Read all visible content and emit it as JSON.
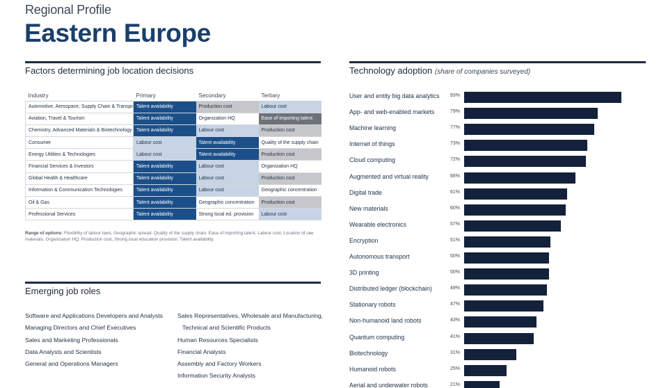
{
  "header": {
    "eyebrow": "Regional Profile",
    "title": "Eastern Europe"
  },
  "factors": {
    "title": "Factors determining job location decisions",
    "columns": [
      "Industry",
      "Primary",
      "Secondary",
      "Tertiary"
    ],
    "rows": [
      {
        "industry": "Automotive, Aerospace, Supply Chain & Transport",
        "primary": "Talent availability",
        "secondary": "Production cost",
        "tertiary": "Labour cost",
        "styles": [
          "dark",
          "grey",
          "light"
        ]
      },
      {
        "industry": "Aviation, Travel & Tourism",
        "primary": "Talent availability",
        "secondary": "Organization HQ",
        "tertiary": "Ease of importing talent",
        "styles": [
          "dark",
          "white",
          "darkgrey"
        ]
      },
      {
        "industry": "Chemistry, Advanced Materials & Biotechnology",
        "primary": "Talent availability",
        "secondary": "Labour cost",
        "tertiary": "Production cost",
        "styles": [
          "dark",
          "light",
          "grey"
        ]
      },
      {
        "industry": "Consumer",
        "primary": "Labour cost",
        "secondary": "Talent availability",
        "tertiary": "Quality of the supply chain",
        "styles": [
          "light",
          "dark",
          "white"
        ]
      },
      {
        "industry": "Energy Utilities & Technologies",
        "primary": "Labour cost",
        "secondary": "Talent availability",
        "tertiary": "Production cost",
        "styles": [
          "light",
          "dark",
          "grey"
        ]
      },
      {
        "industry": "Financial Services & Investors",
        "primary": "Talent availability",
        "secondary": "Labour cost",
        "tertiary": "Organization HQ",
        "styles": [
          "dark",
          "light",
          "white"
        ]
      },
      {
        "industry": "Global Health & Healthcare",
        "primary": "Talent availability",
        "secondary": "Labour cost",
        "tertiary": "Production cost",
        "styles": [
          "dark",
          "light",
          "grey"
        ]
      },
      {
        "industry": "Information & Communication Technologies",
        "primary": "Talent availability",
        "secondary": "Labour cost",
        "tertiary": "Geographic concentration",
        "styles": [
          "dark",
          "light",
          "white"
        ]
      },
      {
        "industry": "Oil & Gas",
        "primary": "Talent availability",
        "secondary": "Geographic concentration",
        "tertiary": "Production cost",
        "styles": [
          "dark",
          "white",
          "grey"
        ]
      },
      {
        "industry": "Professional Services",
        "primary": "Talent availability",
        "secondary": "Strong local ed. provision",
        "tertiary": "Labour cost",
        "styles": [
          "dark",
          "white",
          "light"
        ]
      }
    ],
    "range_label": "Range of options:",
    "range_text": "Flexibility of labour laws, Geographic spread, Quality of the supply chain, Ease of importing talent, Labour cost, Location of raw materials, Organization HQ, Production cost, Strong local education provision, Talent availability."
  },
  "roles": {
    "title": "Emerging job roles",
    "col1": [
      "Software and Applications Developers and Analysts",
      "Managing Directors and Chief Executives",
      "Sales and Marketing Professionals",
      "Data Analysts and Scientists",
      "General and Operations Managers"
    ],
    "col2": [
      {
        "text": "Sales Representatives, Wholesale and Manufacturing,",
        "indent": false
      },
      {
        "text": "Technical and Scientific Products",
        "indent": true
      },
      {
        "text": "Human Resources Specialists",
        "indent": false
      },
      {
        "text": "Financial Analysts",
        "indent": false
      },
      {
        "text": "Assembly and Factory Workers",
        "indent": false
      },
      {
        "text": "Information Security Analysts",
        "indent": false
      }
    ]
  },
  "tech": {
    "title": "Technology adoption",
    "subtitle": "(share of companies surveyed)",
    "bar_color": "#13213b"
  },
  "chart_data": {
    "type": "bar",
    "orientation": "horizontal",
    "title": "Technology adoption",
    "subtitle": "(share of companies surveyed)",
    "categories": [
      "User and entity big data analytics",
      "App- and web-enabled markets",
      "Machine learning",
      "Internet of things",
      "Cloud computing",
      "Augmented and virtual reality",
      "Digital trade",
      "New materials",
      "Wearable electronics",
      "Encryption",
      "Autonomous transport",
      "3D printing",
      "Distributed ledger (blockchain)",
      "Stationary robots",
      "Non-humanoid land robots",
      "Quantum computing",
      "Biotechnology",
      "Humanoid robots",
      "Aerial and underwater robots"
    ],
    "values": [
      93,
      79,
      77,
      73,
      72,
      66,
      61,
      60,
      57,
      51,
      50,
      50,
      49,
      47,
      43,
      41,
      31,
      25,
      21
    ],
    "value_suffix": "%",
    "xlim": [
      0,
      100
    ]
  }
}
